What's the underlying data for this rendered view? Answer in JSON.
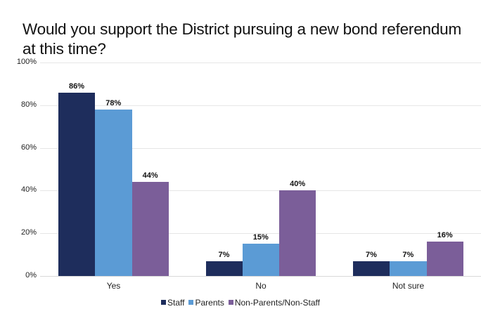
{
  "chart_data": {
    "type": "bar",
    "title": "Would you support the District pursuing a new bond referendum at this time?",
    "title_lines": [
      "Would you support the District pursuing a new bond referendum",
      "at this time?"
    ],
    "xlabel": "",
    "ylabel": "",
    "ylim": [
      0,
      100
    ],
    "yticks": [
      "0%",
      "20%",
      "40%",
      "60%",
      "80%",
      "100%"
    ],
    "grid": true,
    "legend_position": "bottom",
    "categories": [
      "Yes",
      "No",
      "Not sure"
    ],
    "series": [
      {
        "name": "Staff",
        "color": "#1e2d5c",
        "values": [
          86,
          7,
          7
        ],
        "labels": [
          "86%",
          "7%",
          "7%"
        ]
      },
      {
        "name": "Parents",
        "color": "#5b9bd5",
        "values": [
          78,
          15,
          7
        ],
        "labels": [
          "78%",
          "15%",
          "7%"
        ]
      },
      {
        "name": "Non-Parents/Non-Staff",
        "color": "#7b5e99",
        "values": [
          44,
          40,
          16
        ],
        "labels": [
          "44%",
          "40%",
          "16%"
        ]
      }
    ]
  }
}
